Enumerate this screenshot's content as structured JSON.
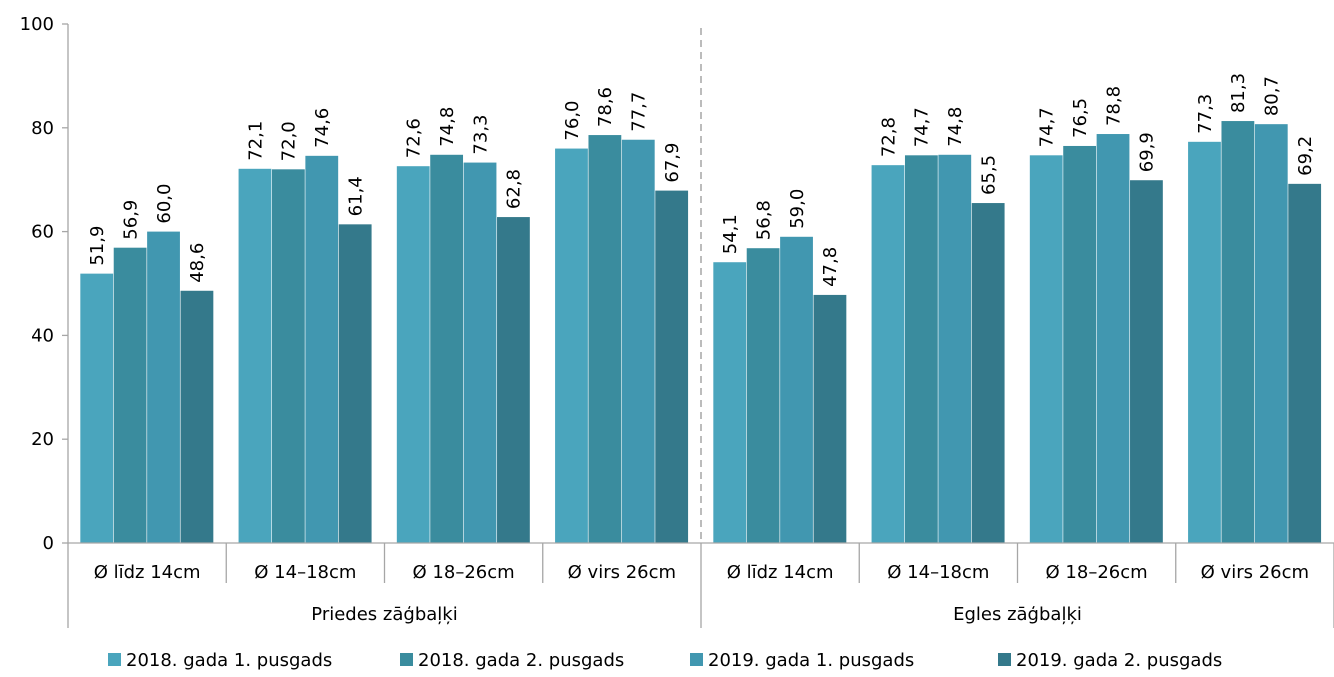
{
  "chart_data": {
    "type": "bar",
    "ylim": [
      0,
      100
    ],
    "yticks": [
      "0",
      "20",
      "40",
      "60",
      "80",
      "100"
    ],
    "groups": [
      {
        "label": "Priedes zāģbaļķi",
        "categories": [
          "Ø līdz 14cm",
          "Ø 14–18cm",
          "Ø 18–26cm",
          "Ø virs 26cm"
        ]
      },
      {
        "label": "Egles zāģbaļķi",
        "categories": [
          "Ø līdz 14cm",
          "Ø 14–18cm",
          "Ø 18–26cm",
          "Ø virs 26cm"
        ]
      }
    ],
    "series": [
      {
        "name": "2018. gada 1. pusgads",
        "color": "#4aa5bd",
        "values": [
          51.9,
          72.1,
          72.6,
          76.0,
          54.1,
          72.8,
          74.7,
          77.3
        ],
        "labels": [
          "51,9",
          "72,1",
          "72,6",
          "76,0",
          "54,1",
          "72,8",
          "74,7",
          "77,3"
        ]
      },
      {
        "name": "2018. gada 2. pusgads",
        "color": "#3a8c9e",
        "values": [
          56.9,
          72.0,
          74.8,
          78.6,
          56.8,
          74.7,
          76.5,
          81.3
        ],
        "labels": [
          "56,9",
          "72,0",
          "74,8",
          "78,6",
          "56,8",
          "74,7",
          "76,5",
          "81,3"
        ]
      },
      {
        "name": "2019. gada 1. pusgads",
        "color": "#4197b0",
        "values": [
          60.0,
          74.6,
          73.3,
          77.7,
          59.0,
          74.8,
          78.8,
          80.7
        ],
        "labels": [
          "60,0",
          "74,6",
          "73,3",
          "77,7",
          "59,0",
          "74,8",
          "78,8",
          "80,7"
        ]
      },
      {
        "name": "2019. gada 2. pusgads",
        "color": "#34798b",
        "values": [
          48.6,
          61.4,
          62.8,
          67.9,
          47.8,
          65.5,
          69.9,
          69.2
        ],
        "labels": [
          "48,6",
          "61,4",
          "62,8",
          "67,9",
          "47,8",
          "65,5",
          "69,9",
          "69,2"
        ]
      }
    ],
    "legend": "bottom",
    "separator": "dashed between groups"
  }
}
